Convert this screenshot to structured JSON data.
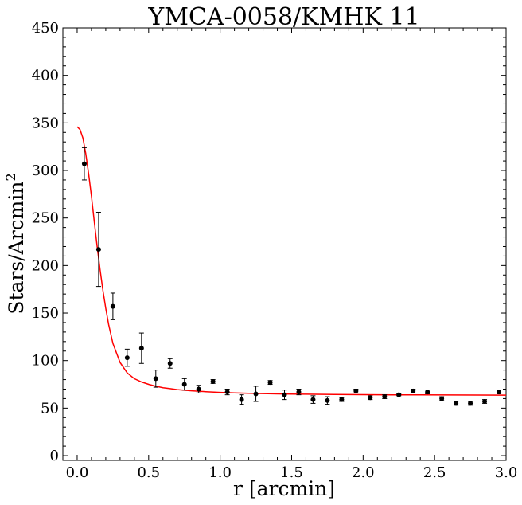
{
  "chart_data": {
    "type": "scatter",
    "title": "YMCA-0058/KMHK 11",
    "xlabel": "r [arcmin]",
    "ylabel": "Stars/Arcmin",
    "ylabel_superscript": "2",
    "xlim": [
      -0.1,
      3.0
    ],
    "ylim": [
      -5,
      450
    ],
    "xticks": [
      0.0,
      0.5,
      1.0,
      1.5,
      2.0,
      2.5,
      3.0
    ],
    "xtick_labels": [
      "0.0",
      "0.5",
      "1.0",
      "1.5",
      "2.0",
      "2.5",
      "3.0"
    ],
    "yticks": [
      0,
      50,
      100,
      150,
      200,
      250,
      300,
      350,
      400,
      450
    ],
    "ytick_labels": [
      "0",
      "50",
      "100",
      "150",
      "200",
      "250",
      "300",
      "350",
      "400",
      "450"
    ],
    "grid": false,
    "series": [
      {
        "kind": "points-with-errorbars",
        "color": "#000000",
        "points": [
          {
            "x": 0.05,
            "y": 307,
            "err": 17
          },
          {
            "x": 0.15,
            "y": 217,
            "err": 39
          },
          {
            "x": 0.25,
            "y": 157,
            "err": 14
          },
          {
            "x": 0.35,
            "y": 103,
            "err": 9
          },
          {
            "x": 0.45,
            "y": 113,
            "err": 16
          },
          {
            "x": 0.55,
            "y": 81,
            "err": 9
          },
          {
            "x": 0.65,
            "y": 97,
            "err": 5
          },
          {
            "x": 0.75,
            "y": 75,
            "err": 6
          },
          {
            "x": 0.85,
            "y": 70,
            "err": 4
          },
          {
            "x": 0.95,
            "y": 78,
            "err": 2
          },
          {
            "x": 1.05,
            "y": 67,
            "err": 3
          },
          {
            "x": 1.15,
            "y": 59,
            "err": 5
          },
          {
            "x": 1.25,
            "y": 65,
            "err": 8
          },
          {
            "x": 1.35,
            "y": 77,
            "err": 2
          },
          {
            "x": 1.45,
            "y": 64,
            "err": 5
          },
          {
            "x": 1.55,
            "y": 67,
            "err": 3
          },
          {
            "x": 1.65,
            "y": 59,
            "err": 4
          },
          {
            "x": 1.75,
            "y": 58,
            "err": 4
          },
          {
            "x": 1.85,
            "y": 59,
            "err": 2
          },
          {
            "x": 1.95,
            "y": 68,
            "err": 2
          },
          {
            "x": 2.05,
            "y": 61,
            "err": 2
          },
          {
            "x": 2.15,
            "y": 62,
            "err": 2
          },
          {
            "x": 2.25,
            "y": 64,
            "err": 1
          },
          {
            "x": 2.35,
            "y": 68,
            "err": 2
          },
          {
            "x": 2.45,
            "y": 67,
            "err": 2
          },
          {
            "x": 2.55,
            "y": 60,
            "err": 2
          },
          {
            "x": 2.65,
            "y": 55,
            "err": 2
          },
          {
            "x": 2.75,
            "y": 55,
            "err": 2
          },
          {
            "x": 2.85,
            "y": 57,
            "err": 2
          },
          {
            "x": 2.95,
            "y": 67,
            "err": 2
          }
        ]
      },
      {
        "kind": "fit-curve",
        "color": "#ff0000",
        "x": [
          0.0,
          0.02,
          0.04,
          0.06,
          0.08,
          0.1,
          0.12,
          0.14,
          0.16,
          0.18,
          0.2,
          0.22,
          0.25,
          0.3,
          0.35,
          0.4,
          0.45,
          0.5,
          0.55,
          0.6,
          0.65,
          0.7,
          0.75,
          0.8,
          0.9,
          1.0,
          1.1,
          1.2,
          1.3,
          1.4,
          1.5,
          1.6,
          1.8,
          2.0,
          2.2,
          2.4,
          2.6,
          2.8,
          3.0
        ],
        "y": [
          346,
          343,
          334,
          318,
          297,
          273,
          246,
          220,
          196,
          174,
          155,
          138,
          118,
          98,
          87,
          81,
          77.5,
          75,
          73,
          71.5,
          70.5,
          69.5,
          68.8,
          68.2,
          67.3,
          66.6,
          66.0,
          65.6,
          65.3,
          65.0,
          64.8,
          64.6,
          64.3,
          64.1,
          64.0,
          63.9,
          63.8,
          63.7,
          63.6
        ]
      }
    ]
  }
}
